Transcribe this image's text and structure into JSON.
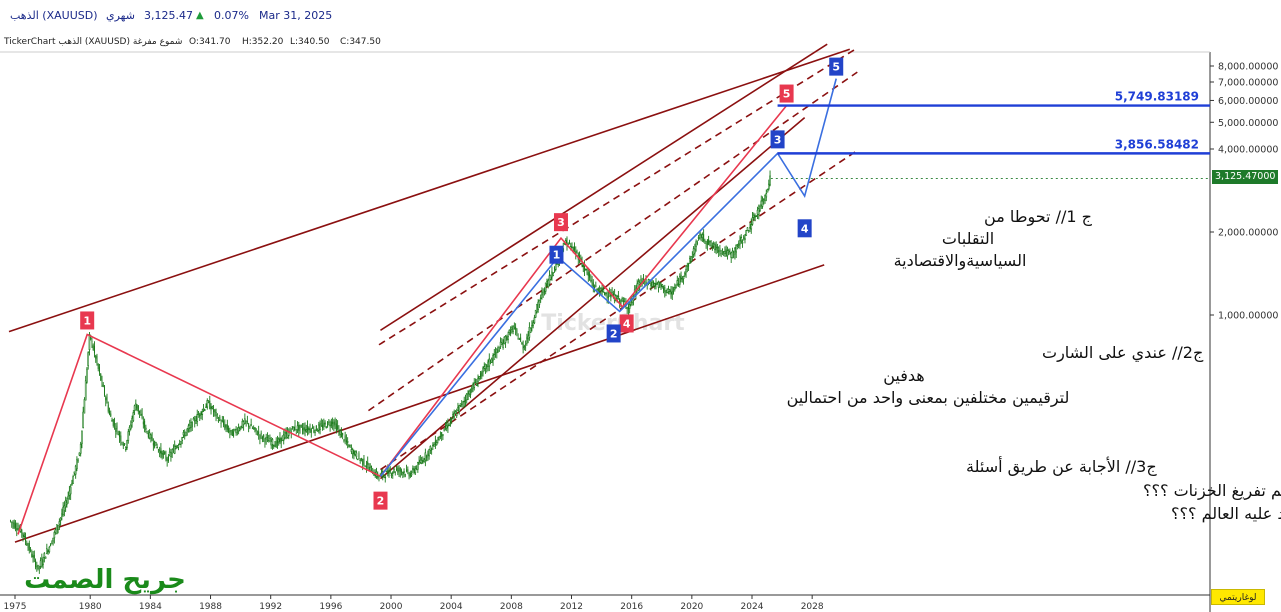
{
  "header": {
    "symbol": "الذهب (XAUUSD)",
    "interval": "شهري",
    "price": "3,125.47",
    "change_pct": "0.07%",
    "date": "Mar 31, 2025",
    "up_arrow_color": "#1e9b3a"
  },
  "ohlc": {
    "source": "TickerChart الذهب (XAUUSD) شموع مفرغة",
    "open": "O:341.70",
    "high": "H:352.20",
    "low": "L:340.50",
    "close": "C:347.50"
  },
  "price_tag": "3,125.47000",
  "log_button": "لوغاريتمي",
  "watermark": "TickerChart",
  "signature": "جريح الصمت",
  "chart_data": {
    "type": "candlestick",
    "title": "",
    "xlabel": "",
    "ylabel": "",
    "yscale": "log",
    "ylim": [
      150,
      9500
    ],
    "xlim": [
      1974.6,
      2033.5
    ],
    "x_ticks": [
      1975,
      1980,
      1984,
      1988,
      1992,
      1996,
      2000,
      2004,
      2008,
      2012,
      2016,
      2020,
      2024,
      2028
    ],
    "y_ticks": [
      {
        "value": 1000,
        "label": "1,000.00000"
      },
      {
        "value": 2000,
        "label": "2,000.00000"
      },
      {
        "value": 4000,
        "label": "4,000.00000"
      },
      {
        "value": 5000,
        "label": "5,000.00000"
      },
      {
        "value": 6000,
        "label": "6,000.00000"
      },
      {
        "value": 7000,
        "label": "7,000.00000"
      },
      {
        "value": 8000,
        "label": "8,000.00000"
      }
    ],
    "price_path": [
      [
        1974.7,
        180
      ],
      [
        1975.5,
        165
      ],
      [
        1976.6,
        120
      ],
      [
        1977.5,
        150
      ],
      [
        1978.5,
        210
      ],
      [
        1979.4,
        320
      ],
      [
        1980.05,
        850
      ],
      [
        1980.6,
        640
      ],
      [
        1981.4,
        430
      ],
      [
        1982.4,
        330
      ],
      [
        1983.1,
        480
      ],
      [
        1983.8,
        380
      ],
      [
        1984.7,
        320
      ],
      [
        1985.2,
        300
      ],
      [
        1986.5,
        380
      ],
      [
        1987.9,
        480
      ],
      [
        1988.6,
        420
      ],
      [
        1989.5,
        370
      ],
      [
        1990.4,
        410
      ],
      [
        1991.5,
        360
      ],
      [
        1992.4,
        340
      ],
      [
        1993.6,
        390
      ],
      [
        1995,
        385
      ],
      [
        1996.2,
        410
      ],
      [
        1997.5,
        320
      ],
      [
        1999.2,
        260
      ],
      [
        2000.5,
        275
      ],
      [
        2001.4,
        265
      ],
      [
        2002.6,
        320
      ],
      [
        2004,
        410
      ],
      [
        2006.4,
        650
      ],
      [
        2008.2,
        900
      ],
      [
        2008.9,
        760
      ],
      [
        2010,
        1150
      ],
      [
        2011.7,
        1850
      ],
      [
        2012.5,
        1650
      ],
      [
        2013.6,
        1250
      ],
      [
        2015.1,
        1150
      ],
      [
        2015.9,
        1070
      ],
      [
        2016.6,
        1320
      ],
      [
        2017.8,
        1290
      ],
      [
        2018.7,
        1190
      ],
      [
        2019.8,
        1500
      ],
      [
        2020.6,
        1950
      ],
      [
        2021.4,
        1780
      ],
      [
        2022.7,
        1650
      ],
      [
        2023.6,
        1940
      ],
      [
        2024.4,
        2350
      ],
      [
        2024.9,
        2650
      ],
      [
        2025.25,
        3125.47
      ]
    ],
    "horizontal_levels": [
      {
        "value": 5749.83189,
        "label": "5,749.83189",
        "color": "#1f3fd6"
      },
      {
        "value": 3856.58482,
        "label": "3,856.58482",
        "color": "#1f3fd6"
      }
    ],
    "last_price": 3125.47,
    "wave_labels_red": [
      {
        "label": "1",
        "x": 1979.8,
        "y": 850
      },
      {
        "label": "2",
        "x": 1999.3,
        "y": 255
      },
      {
        "label": "3",
        "x": 2011.3,
        "y": 1900
      },
      {
        "label": "4",
        "x": 2015.4,
        "y": 1030
      },
      {
        "label": "5",
        "x": 2026.3,
        "y": 5749.83
      }
    ],
    "wave_labels_blue": [
      {
        "label": "1",
        "x": 2011.0,
        "y": 1600
      },
      {
        "label": "2",
        "x": 2015.2,
        "y": 1030
      },
      {
        "label": "3",
        "x": 2025.7,
        "y": 3856.58
      },
      {
        "label": "4",
        "x": 2027.5,
        "y": 2650
      },
      {
        "label": "5",
        "x": 2029.6,
        "y": 7200
      }
    ],
    "annotations": [
      "ج 1// تحوطا من",
      "التقلبات",
      "السياسيةوالاقتصادية",
      "ج2// عندي على الشارت",
      "هدفين",
      "لترقيمين مختلفين بمعنى واحد من احتمالين",
      "ج3// الأجابة عن طريق أسئلة",
      "هل افتعال الأزمات لتحقيق الأهداف العليا للذهب ثم تفريغ الخزنات ؟؟؟",
      "هل هناك خوف من تخيفض سعر الدولار الأمريكي الذي معتمد عليه العالم ؟؟؟"
    ],
    "colors": {
      "channel": "#8b1010",
      "red_wave": "#e8384f",
      "blue_wave": "#3a6fe0",
      "candles": "#1a7a1a",
      "signature": "#1a8a1a"
    }
  }
}
